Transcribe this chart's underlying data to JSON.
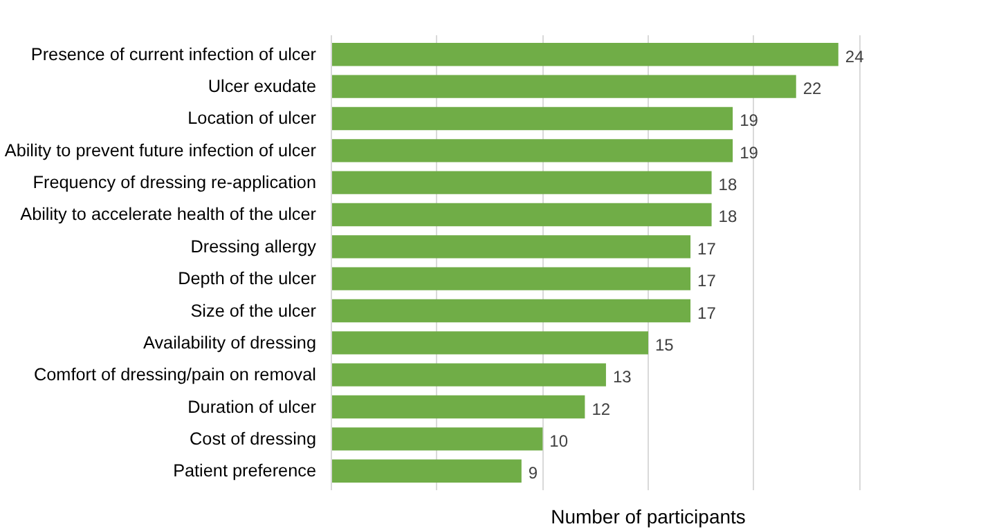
{
  "chart_data": {
    "type": "bar",
    "orientation": "horizontal",
    "xlabel": "Number of participants",
    "categories": [
      "Presence of current infection of ulcer",
      "Ulcer exudate",
      "Location of ulcer",
      "Ability to prevent future infection of ulcer",
      "Frequency of dressing re-application",
      "Ability to accelerate health of the ulcer",
      "Dressing allergy",
      "Depth of the ulcer",
      "Size of the ulcer",
      "Availability of dressing",
      "Comfort of dressing/pain on removal",
      "Duration of ulcer",
      "Cost of dressing",
      "Patient preference"
    ],
    "values": [
      24,
      22,
      19,
      19,
      18,
      18,
      17,
      17,
      17,
      15,
      13,
      12,
      10,
      9
    ],
    "color": "#70ad47",
    "data_labels": true,
    "tick_labels": "y",
    "grid": "x"
  }
}
